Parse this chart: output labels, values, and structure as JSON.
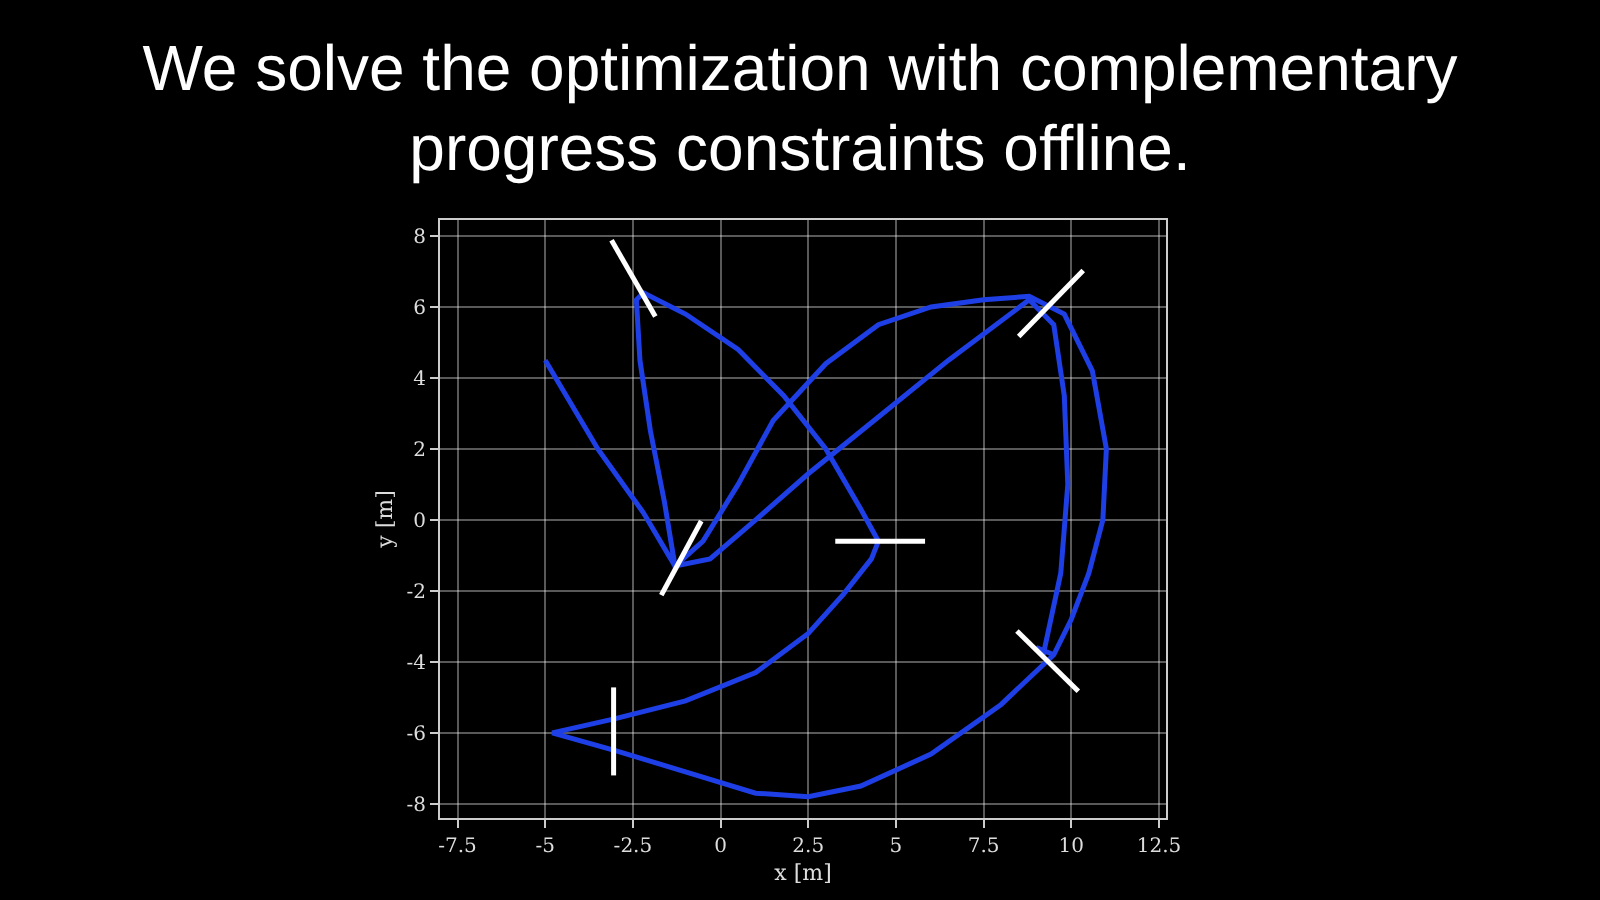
{
  "chart_data": {
    "type": "line",
    "title": "We solve the optimization with complementary progress constraints offline.",
    "xlabel": "x [m]",
    "ylabel": "y [m]",
    "xlim": [
      -8.0,
      12.7
    ],
    "ylim": [
      -8.4,
      8.45
    ],
    "xticks": [
      -7.5,
      -5,
      -2.5,
      0,
      2.5,
      5,
      7.5,
      10,
      12.5
    ],
    "yticks": [
      -8,
      -6,
      -4,
      -2,
      0,
      2,
      4,
      6,
      8
    ],
    "grid": true,
    "marker": "none",
    "line_style": "solid",
    "series": [
      {
        "color": "#1f3fe6",
        "x": [
          -5,
          -3.5,
          -2.2,
          -1.3,
          -0.5,
          0.5,
          1.5,
          3,
          4.5,
          6,
          7.5,
          8.8,
          9.8,
          10.6,
          11,
          10.9,
          10.5,
          10,
          9.5,
          8,
          6,
          4,
          2.5,
          1,
          -1,
          -3,
          -4.8,
          -3,
          -1,
          1,
          2.5,
          3.5,
          4.3,
          4.5,
          4,
          3,
          1.8,
          0.5,
          -1,
          -2.2,
          -2.4,
          -2.3,
          -2,
          -1.6,
          -1.3,
          -0.5,
          0.5,
          1.5,
          3,
          4.5,
          6,
          7.5,
          8.8,
          9.8,
          10.6,
          11,
          10.9,
          10.5,
          10,
          9.5,
          8,
          6,
          4,
          2.5,
          1,
          -1,
          -3,
          -4.8,
          -3,
          -1,
          1,
          2.5,
          3.5,
          4.3,
          4.5,
          4,
          3,
          1.8,
          0.5,
          -1,
          -2.2,
          -2.4,
          -2.3,
          -2,
          -1.6,
          -1.3,
          -0.3,
          1,
          2.5,
          4.5,
          6.5,
          8.8,
          9.5,
          9.8,
          9.9,
          9.7,
          9.2,
          9.0,
          9.5
        ],
        "values": [
          4.5,
          2,
          0.2,
          -1.3,
          -0.6,
          1,
          2.8,
          4.4,
          5.5,
          6,
          6.2,
          6.3,
          5.8,
          4.2,
          2,
          0,
          -1.5,
          -2.8,
          -3.8,
          -5.2,
          -6.6,
          -7.5,
          -7.8,
          -7.7,
          -7.1,
          -6.5,
          -6,
          -5.6,
          -5.1,
          -4.3,
          -3.2,
          -2.1,
          -1.1,
          -0.6,
          0.3,
          2,
          3.5,
          4.8,
          5.8,
          6.4,
          6.2,
          4.5,
          2.5,
          0.5,
          -1.3,
          -0.6,
          1,
          2.8,
          4.4,
          5.5,
          6,
          6.2,
          6.3,
          5.8,
          4.2,
          2,
          0,
          -1.5,
          -2.8,
          -3.8,
          -5.2,
          -6.6,
          -7.5,
          -7.8,
          -7.7,
          -7.1,
          -6.5,
          -6,
          -5.6,
          -5.1,
          -4.3,
          -3.2,
          -2.1,
          -1.1,
          -0.6,
          0.3,
          2,
          3.5,
          4.8,
          5.8,
          6.4,
          6.2,
          4.5,
          2.5,
          0.5,
          -1.3,
          -1.1,
          0,
          1.3,
          2.9,
          4.5,
          6.2,
          5.5,
          3.5,
          1,
          -1.5,
          -3.8,
          -3.6,
          -3.8
        ]
      },
      {
        "color": "#ffffff",
        "x": [
          -3.11,
          -1.86,
          null,
          -1.69,
          -0.55,
          null,
          8.5,
          10.34,
          null,
          8.45,
          10.2,
          null,
          -3.05,
          -3.05,
          null,
          3.27,
          5.83
        ],
        "values": [
          7.88,
          5.73,
          null,
          -2.12,
          -0.03,
          null,
          5.17,
          7.03,
          null,
          -3.13,
          -4.83,
          null,
          -4.72,
          -7.2,
          null,
          -0.6,
          -0.6
        ]
      }
    ]
  }
}
